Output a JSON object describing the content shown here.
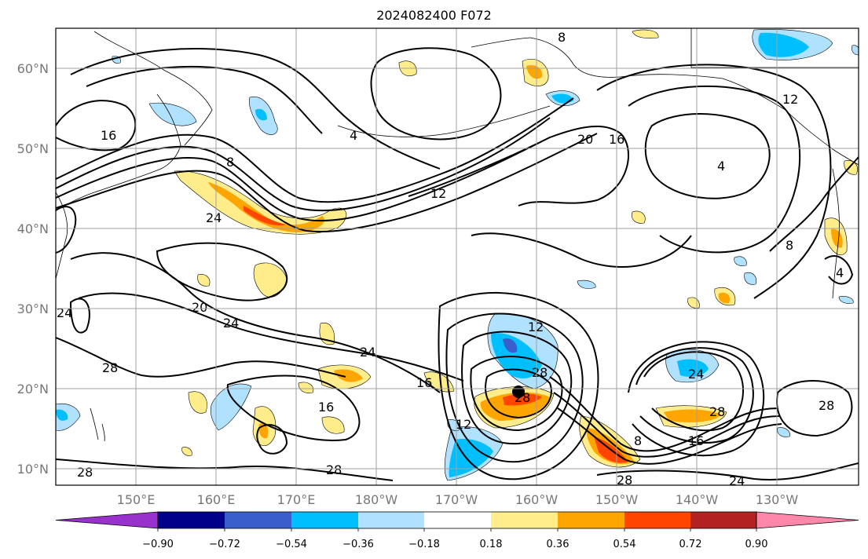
{
  "title": "2024082400 F072",
  "map": {
    "lat_labels": [
      "60°N",
      "50°N",
      "40°N",
      "30°N",
      "20°N",
      "10°N"
    ],
    "lon_labels": [
      "150°E",
      "160°E",
      "170°E",
      "180°W",
      "170°W",
      "160°W",
      "150°W",
      "140°W",
      "130°W"
    ],
    "contour_labels": [
      "16",
      "8",
      "24",
      "4",
      "12",
      "20",
      "16",
      "12",
      "8",
      "4",
      "20",
      "24",
      "24",
      "28",
      "16",
      "16",
      "12",
      "28",
      "12",
      "28",
      "24",
      "28",
      "16",
      "8",
      "28",
      "28",
      "24",
      "28",
      "8",
      "4",
      "28",
      "24"
    ]
  },
  "colorbar": {
    "ticks": [
      "−0.90",
      "−0.72",
      "−0.54",
      "−0.36",
      "−0.18",
      "0.18",
      "0.36",
      "0.54",
      "0.72",
      "0.90"
    ],
    "colors": [
      "#9932cc",
      "#00008b",
      "#3a5fcd",
      "#00bfff",
      "#b0e2ff",
      "#ffffff",
      "#ffec8b",
      "#ffa500",
      "#ff4500",
      "#b22222",
      "#ff88aa"
    ]
  }
}
